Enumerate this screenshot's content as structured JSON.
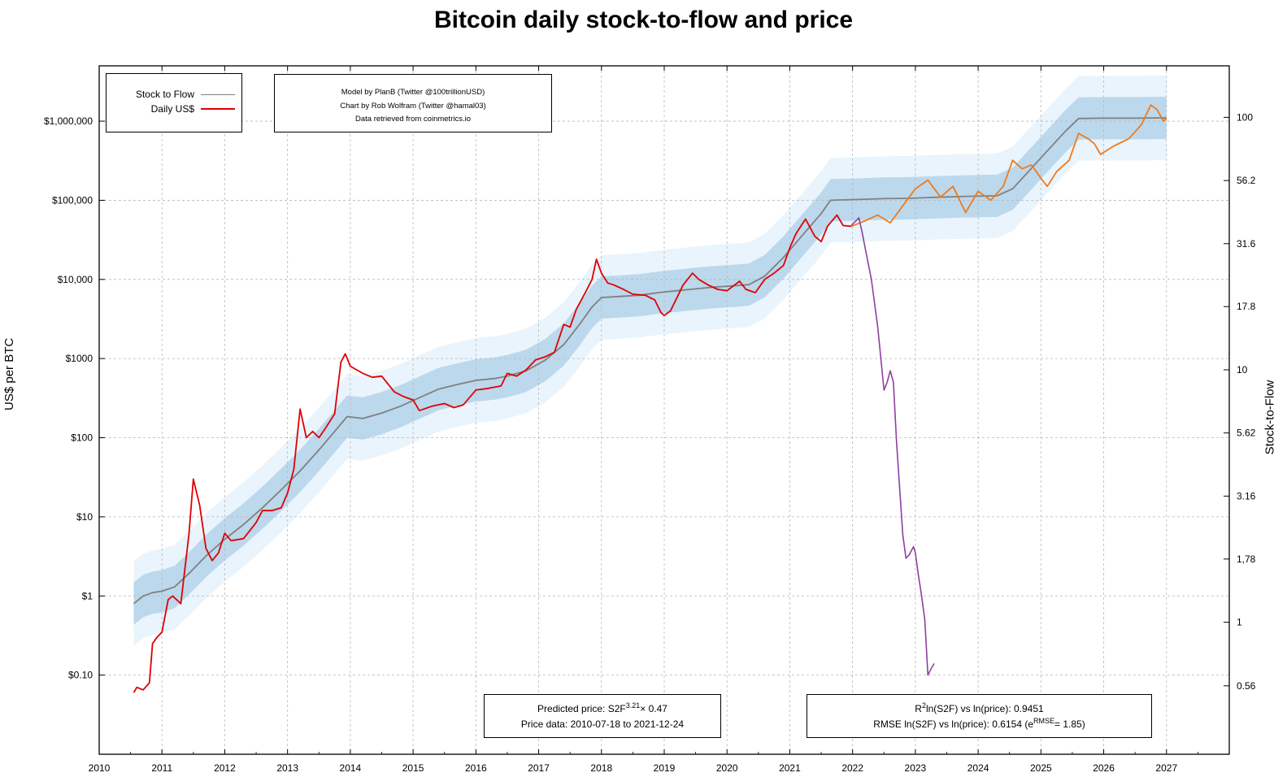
{
  "chart_data": {
    "type": "line",
    "title": "Bitcoin daily stock-to-flow and price",
    "ylabel_left": "US$ per BTC",
    "ylabel_right": "Stock-to-Flow",
    "yscale": "log",
    "x_range": [
      2010,
      2028
    ],
    "y_left_range": [
      0.01,
      5000000
    ],
    "y_right_range": [
      0.3,
      160
    ],
    "x_ticks": [
      "2010",
      "2011",
      "2012",
      "2013",
      "2014",
      "2015",
      "2016",
      "2017",
      "2018",
      "2019",
      "2020",
      "2021",
      "2022",
      "2023",
      "2024",
      "2025",
      "2026",
      "2027"
    ],
    "y_left_ticks": [
      {
        "value": 0.1,
        "label": "$0.10"
      },
      {
        "value": 1,
        "label": "$1"
      },
      {
        "value": 10,
        "label": "$10"
      },
      {
        "value": 100,
        "label": "$100"
      },
      {
        "value": 1000,
        "label": "$1000"
      },
      {
        "value": 10000,
        "label": "$10,000"
      },
      {
        "value": 100000,
        "label": "$100,000"
      },
      {
        "value": 1000000,
        "label": "$1,000,000"
      }
    ],
    "y_right_ticks": [
      {
        "value": 0.56,
        "label": "0.56"
      },
      {
        "value": 1,
        "label": "1"
      },
      {
        "value": 1.78,
        "label": "1,78"
      },
      {
        "value": 3.16,
        "label": "3.16"
      },
      {
        "value": 5.62,
        "label": "5.62"
      },
      {
        "value": 10,
        "label": "10"
      },
      {
        "value": 17.8,
        "label": "17.8"
      },
      {
        "value": 31.6,
        "label": "31.6"
      },
      {
        "value": 56.2,
        "label": "56.2"
      },
      {
        "value": 100,
        "label": "100"
      }
    ],
    "legend": [
      {
        "name": "Stock to Flow",
        "color": "#808080"
      },
      {
        "name": "Daily US$",
        "color": "#e00000"
      }
    ],
    "legend_position": "top-left",
    "colors": {
      "s2f": "#808080",
      "price": "#e00000",
      "projection": "#f07a1a",
      "actual_after": "#8e3fa0",
      "band_inner": "#bcd8ec",
      "band_outer": "#e9f4fc",
      "grid": "#b8b8b8"
    },
    "series": [
      {
        "name": "Stock to Flow",
        "x": [
          2010.55,
          2010.7,
          2010.85,
          2011.0,
          2011.2,
          2011.45,
          2011.7,
          2012.0,
          2012.3,
          2012.6,
          2012.9,
          2013.2,
          2013.5,
          2013.75,
          2013.95,
          2014.2,
          2014.5,
          2014.8,
          2015.1,
          2015.4,
          2015.7,
          2016.0,
          2016.3,
          2016.5,
          2016.8,
          2017.1,
          2017.4,
          2017.65,
          2017.85,
          2018.0,
          2018.3,
          2018.6,
          2018.9,
          2019.2,
          2019.5,
          2019.8,
          2020.1,
          2020.35,
          2020.6,
          2020.9,
          2021.2,
          2021.5,
          2021.65,
          2021.8,
          2022.0,
          2022.5,
          2022.9,
          2023.3,
          2023.8,
          2024.3,
          2024.55,
          2024.8,
          2025.1,
          2025.4,
          2025.6,
          2026.0,
          2026.5,
          2027.0
        ],
        "y": [
          0.8,
          1.0,
          1.1,
          1.15,
          1.3,
          2.0,
          3.2,
          5.2,
          8.0,
          13,
          22,
          38,
          70,
          120,
          185,
          175,
          205,
          250,
          320,
          410,
          470,
          530,
          560,
          600,
          700,
          950,
          1500,
          2700,
          4500,
          5900,
          6100,
          6300,
          6800,
          7200,
          7600,
          8000,
          8300,
          8600,
          11000,
          19000,
          36000,
          68000,
          100000,
          101000,
          102000,
          105000,
          106000,
          109000,
          112000,
          114000,
          140000,
          230000,
          420000,
          760000,
          1080000,
          1090000,
          1090000,
          1100000
        ]
      },
      {
        "name": "Daily US$",
        "x": [
          2010.55,
          2010.6,
          2010.7,
          2010.8,
          2010.85,
          2010.92,
          2011.0,
          2011.1,
          2011.17,
          2011.3,
          2011.43,
          2011.5,
          2011.6,
          2011.7,
          2011.8,
          2011.9,
          2012.0,
          2012.1,
          2012.3,
          2012.5,
          2012.6,
          2012.75,
          2012.9,
          2013.0,
          2013.1,
          2013.2,
          2013.3,
          2013.4,
          2013.5,
          2013.6,
          2013.75,
          2013.85,
          2013.92,
          2014.0,
          2014.2,
          2014.35,
          2014.5,
          2014.7,
          2014.85,
          2015.0,
          2015.1,
          2015.3,
          2015.5,
          2015.65,
          2015.8,
          2016.0,
          2016.2,
          2016.4,
          2016.5,
          2016.65,
          2016.8,
          2016.95,
          2017.1,
          2017.25,
          2017.4,
          2017.5,
          2017.6,
          2017.75,
          2017.85,
          2017.92,
          2018.0,
          2018.1,
          2018.2,
          2018.35,
          2018.5,
          2018.7,
          2018.85,
          2018.95,
          2019.0,
          2019.1,
          2019.3,
          2019.45,
          2019.55,
          2019.7,
          2019.85,
          2020.0,
          2020.2,
          2020.3,
          2020.45,
          2020.6,
          2020.75,
          2020.9,
          2021.0,
          2021.1,
          2021.25,
          2021.4,
          2021.5,
          2021.6,
          2021.75,
          2021.85,
          2021.98
        ],
        "y": [
          0.06,
          0.07,
          0.065,
          0.08,
          0.25,
          0.3,
          0.35,
          0.9,
          1.0,
          0.8,
          6,
          30,
          14,
          4,
          2.8,
          3.5,
          6.2,
          5,
          5.3,
          8.5,
          12,
          12,
          13,
          20,
          40,
          230,
          100,
          120,
          100,
          130,
          200,
          900,
          1150,
          800,
          650,
          580,
          600,
          380,
          330,
          300,
          220,
          250,
          270,
          240,
          260,
          400,
          420,
          450,
          650,
          600,
          720,
          960,
          1050,
          1200,
          2700,
          2500,
          4200,
          7000,
          10000,
          18000,
          12000,
          9000,
          8500,
          7500,
          6500,
          6300,
          5500,
          3800,
          3500,
          4000,
          8500,
          12000,
          10000,
          8500,
          7500,
          7200,
          9500,
          7500,
          6800,
          10000,
          12000,
          15000,
          25000,
          38000,
          58000,
          35000,
          30000,
          47000,
          65000,
          48000,
          47000
        ]
      },
      {
        "name": "Projection",
        "x": [
          2021.98,
          2022.2,
          2022.4,
          2022.6,
          2022.8,
          2023.0,
          2023.2,
          2023.4,
          2023.6,
          2023.8,
          2024.0,
          2024.2,
          2024.4,
          2024.55,
          2024.7,
          2024.85,
          2025.0,
          2025.1,
          2025.25,
          2025.45,
          2025.6,
          2025.75,
          2025.85,
          2025.95,
          2026.15,
          2026.4,
          2026.6,
          2026.75,
          2026.85,
          2026.95,
          2027.0
        ],
        "y": [
          47000,
          55000,
          65000,
          52000,
          85000,
          140000,
          180000,
          110000,
          150000,
          70000,
          130000,
          100000,
          150000,
          320000,
          250000,
          280000,
          190000,
          150000,
          230000,
          320000,
          700000,
          600000,
          520000,
          380000,
          480000,
          600000,
          900000,
          1600000,
          1400000,
          1000000,
          1100000
        ]
      },
      {
        "name": "Actual after chart",
        "x": [
          2021.98,
          2022.1,
          2022.15,
          2022.2,
          2022.3,
          2022.4,
          2022.5,
          2022.55,
          2022.6,
          2022.65,
          2022.7,
          2022.8,
          2022.85,
          2022.9,
          2022.97,
          2023.0,
          2023.05,
          2023.1,
          2023.15,
          2023.2,
          2023.25,
          2023.3
        ],
        "y": [
          48000,
          60000,
          40000,
          25000,
          10000,
          2500,
          400,
          500,
          700,
          500,
          90,
          6,
          3,
          3.3,
          4.2,
          3.5,
          1.8,
          1.0,
          0.5,
          0.1,
          0.12,
          0.14
        ]
      }
    ],
    "bands": {
      "inner_sigma_multiplier": 1.85,
      "outer_sigma_multiplier": 3.42
    },
    "credits": [
      "Model by PlanB (Twitter @100trillionUSD)",
      "Chart by Rob Wolfram (Twitter @hamal03)",
      "Data retrieved from coinmetrics.io"
    ],
    "formula_box": {
      "line1_prefix": "Predicted price: S2F",
      "line1_exp": "3.21",
      "line1_suffix": "× 0.47",
      "line2": "Price data: 2010-07-18 to 2021-12-24"
    },
    "stats_box": {
      "line1_prefix": "R",
      "line1_exp": "2",
      "line1_suffix": "ln(S2F) vs ln(price): 0.9451",
      "line2_prefix": "RMSE ln(S2F) vs ln(price): 0.6154 (e",
      "line2_exp": "RMSE",
      "line2_suffix": "= 1.85)"
    }
  }
}
